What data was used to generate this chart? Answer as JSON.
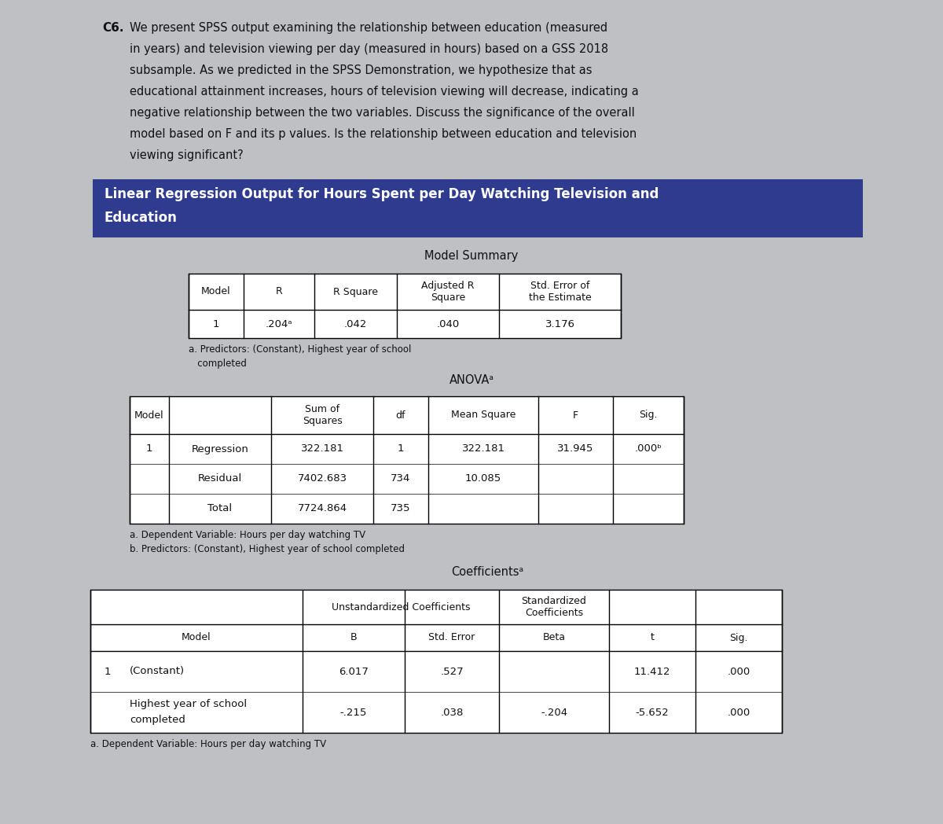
{
  "bg_color": "#bfc0c4",
  "header_bg": "#2e3b8e",
  "header_text_color": "#ffffff",
  "header_title_line1": "Linear Regression Output for Hours Spent per Day Watching Television and",
  "header_title_line2": "Education",
  "intro_label": "C6.",
  "intro_lines": [
    "We present SPSS output examining the relationship between education (measured",
    "in years) and television viewing per day (measured in hours) based on a GSS 2018",
    "subsample. As we predicted in the SPSS Demonstration, we hypothesize that as",
    "educational attainment increases, hours of television viewing will decrease, indicating a",
    "negative relationship between the two variables. Discuss the significance of the overall",
    "model based on F and its p values. Is the relationship between education and television",
    "viewing significant?"
  ],
  "model_summary_title": "Model Summary",
  "model_summary_headers": [
    "Model",
    "R",
    "R Square",
    "Adjusted R\nSquare",
    "Std. Error of\nthe Estimate"
  ],
  "model_summary_row": [
    "1",
    ".204ᵃ",
    ".042",
    ".040",
    "3.176"
  ],
  "model_summary_footnote1": "a. Predictors: (Constant), Highest year of school",
  "model_summary_footnote2": "   completed",
  "anova_title": "ANOVAᵃ",
  "anova_col_headers": [
    "Model",
    "",
    "Sum of\nSquares",
    "df",
    "Mean Square",
    "F",
    "Sig."
  ],
  "anova_rows": [
    [
      "1",
      "Regression",
      "322.181",
      "1",
      "322.181",
      "31.945",
      ".000ᵇ"
    ],
    [
      "",
      "Residual",
      "7402.683",
      "734",
      "10.085",
      "",
      ""
    ],
    [
      "",
      "Total",
      "7724.864",
      "735",
      "",
      "",
      ""
    ]
  ],
  "anova_footnote_a": "a. Dependent Variable: Hours per day watching TV",
  "anova_footnote_b": "b. Predictors: (Constant), Highest year of school completed",
  "coeff_title": "Coefficientsᵃ",
  "coeff_top_headers": [
    "",
    "Unstandardized Coefficients",
    "Standardized\nCoefficients",
    "",
    ""
  ],
  "coeff_sub_headers": [
    "Model",
    "B",
    "Std. Error",
    "Beta",
    "t",
    "Sig."
  ],
  "coeff_rows": [
    [
      "1",
      "(Constant)",
      "6.017",
      ".527",
      "",
      "11.412",
      ".000"
    ],
    [
      "",
      "Highest year of school\ncompleted",
      "-.215",
      ".038",
      "-.204",
      "-5.652",
      ".000"
    ]
  ],
  "coeff_footnote": "a. Dependent Variable: Hours per day watching TV"
}
